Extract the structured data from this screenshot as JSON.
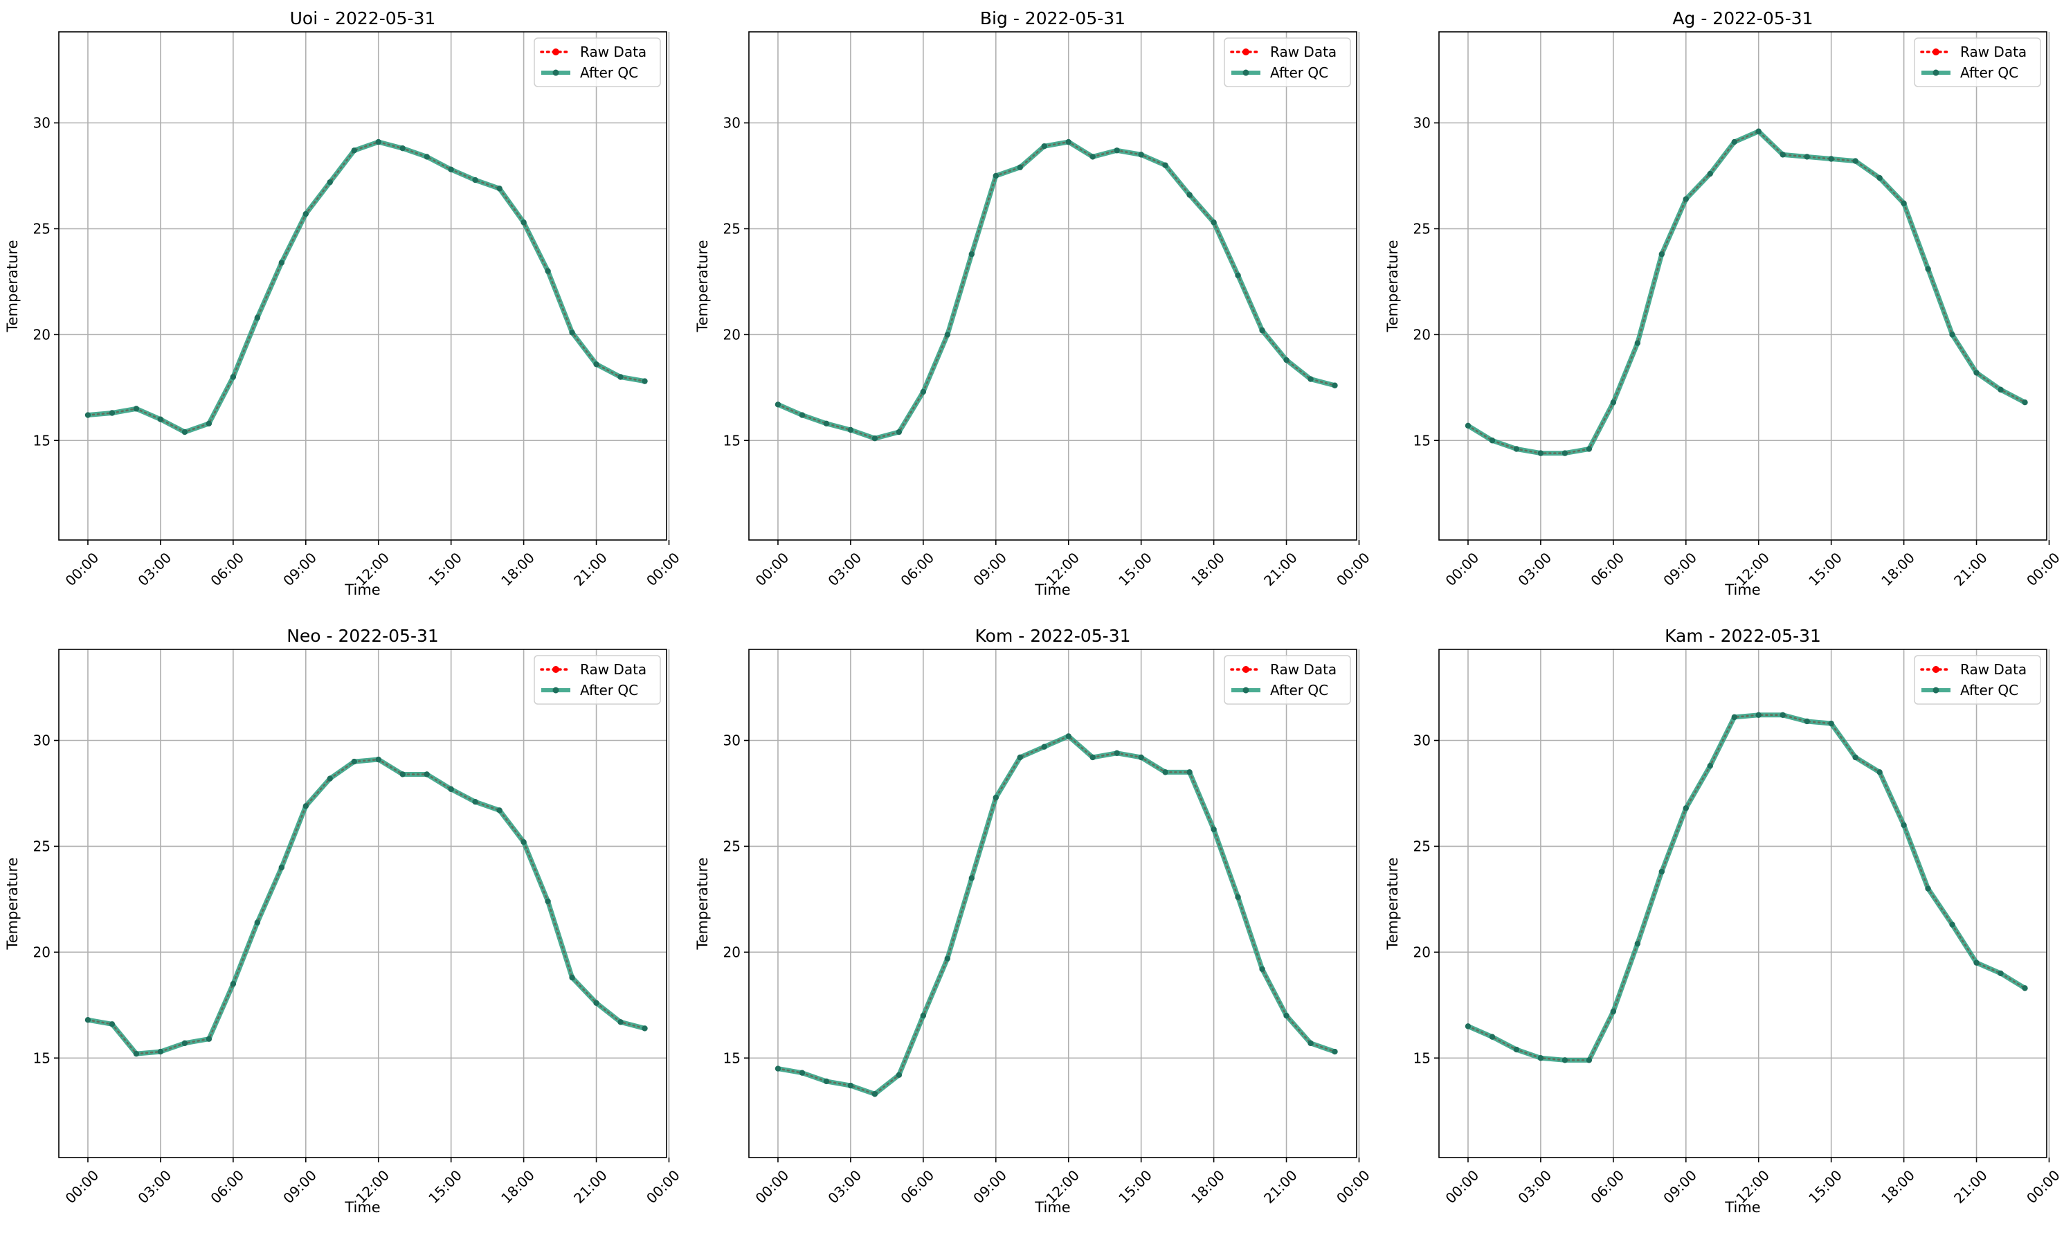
{
  "figure": {
    "legend_labels": [
      "Raw Data",
      "After QC"
    ],
    "colors": {
      "raw": "#ff0000",
      "qc": "#2a9d7f",
      "qc_marker": "#1f6f5c",
      "grid": "#b0b0b0",
      "axes": "#000000"
    }
  },
  "chart_data": [
    {
      "type": "line",
      "title": "Uoi - 2022-05-31",
      "xlabel": "Time",
      "ylabel": "Temperature",
      "ylim": [
        10.3,
        34.3
      ],
      "xlim": [
        -1.2,
        23.9
      ],
      "yticks": [
        15,
        20,
        25,
        30
      ],
      "xticks": [
        "00:00",
        "03:00",
        "06:00",
        "09:00",
        "12:00",
        "15:00",
        "18:00",
        "21:00",
        "00:00"
      ],
      "x": [
        "00:00",
        "01:00",
        "02:00",
        "03:00",
        "04:00",
        "05:00",
        "06:00",
        "07:00",
        "08:00",
        "09:00",
        "10:00",
        "11:00",
        "12:00",
        "13:00",
        "14:00",
        "15:00",
        "16:00",
        "17:00",
        "18:00",
        "19:00",
        "20:00",
        "21:00",
        "22:00",
        "23:00"
      ],
      "grid": true,
      "legend_position": "upper right",
      "series": [
        {
          "name": "Raw Data",
          "values": [
            16.2,
            16.3,
            16.5,
            16.0,
            15.4,
            15.8,
            18.0,
            20.8,
            23.4,
            25.7,
            27.2,
            28.7,
            29.1,
            28.8,
            28.4,
            27.8,
            27.3,
            26.9,
            25.3,
            23.0,
            20.1,
            18.6,
            18.0,
            17.8
          ]
        },
        {
          "name": "After QC",
          "values": [
            16.2,
            16.3,
            16.5,
            16.0,
            15.4,
            15.8,
            18.0,
            20.8,
            23.4,
            25.7,
            27.2,
            28.7,
            29.1,
            28.8,
            28.4,
            27.8,
            27.3,
            26.9,
            25.3,
            23.0,
            20.1,
            18.6,
            18.0,
            17.8
          ]
        }
      ]
    },
    {
      "type": "line",
      "title": "Big - 2022-05-31",
      "xlabel": "Time",
      "ylabel": "Temperature",
      "ylim": [
        10.3,
        34.3
      ],
      "xlim": [
        -1.2,
        23.9
      ],
      "yticks": [
        15,
        20,
        25,
        30
      ],
      "xticks": [
        "00:00",
        "03:00",
        "06:00",
        "09:00",
        "12:00",
        "15:00",
        "18:00",
        "21:00",
        "00:00"
      ],
      "x": [
        "00:00",
        "01:00",
        "02:00",
        "03:00",
        "04:00",
        "05:00",
        "06:00",
        "07:00",
        "08:00",
        "09:00",
        "10:00",
        "11:00",
        "12:00",
        "13:00",
        "14:00",
        "15:00",
        "16:00",
        "17:00",
        "18:00",
        "19:00",
        "20:00",
        "21:00",
        "22:00",
        "23:00"
      ],
      "grid": true,
      "legend_position": "upper right",
      "series": [
        {
          "name": "Raw Data",
          "values": [
            16.7,
            16.2,
            15.8,
            15.5,
            15.1,
            15.4,
            17.3,
            20.0,
            23.8,
            27.5,
            27.9,
            28.9,
            29.1,
            28.4,
            28.7,
            28.5,
            28.0,
            26.6,
            25.3,
            22.8,
            20.2,
            18.8,
            17.9,
            17.6
          ]
        },
        {
          "name": "After QC",
          "values": [
            16.7,
            16.2,
            15.8,
            15.5,
            15.1,
            15.4,
            17.3,
            20.0,
            23.8,
            27.5,
            27.9,
            28.9,
            29.1,
            28.4,
            28.7,
            28.5,
            28.0,
            26.6,
            25.3,
            22.8,
            20.2,
            18.8,
            17.9,
            17.6
          ]
        }
      ]
    },
    {
      "type": "line",
      "title": "Ag - 2022-05-31",
      "xlabel": "Time",
      "ylabel": "Temperature",
      "ylim": [
        10.3,
        34.3
      ],
      "xlim": [
        -1.2,
        23.9
      ],
      "yticks": [
        15,
        20,
        25,
        30
      ],
      "xticks": [
        "00:00",
        "03:00",
        "06:00",
        "09:00",
        "12:00",
        "15:00",
        "18:00",
        "21:00",
        "00:00"
      ],
      "x": [
        "00:00",
        "01:00",
        "02:00",
        "03:00",
        "04:00",
        "05:00",
        "06:00",
        "07:00",
        "08:00",
        "09:00",
        "10:00",
        "11:00",
        "12:00",
        "13:00",
        "14:00",
        "15:00",
        "16:00",
        "17:00",
        "18:00",
        "19:00",
        "20:00",
        "21:00",
        "22:00",
        "23:00"
      ],
      "grid": true,
      "legend_position": "upper right",
      "series": [
        {
          "name": "Raw Data",
          "values": [
            15.7,
            15.0,
            14.6,
            14.4,
            14.4,
            14.6,
            16.8,
            19.6,
            23.8,
            26.4,
            27.6,
            29.1,
            29.6,
            28.5,
            28.4,
            28.3,
            28.2,
            27.4,
            26.2,
            23.1,
            20.0,
            18.2,
            17.4,
            16.8
          ]
        },
        {
          "name": "After QC",
          "values": [
            15.7,
            15.0,
            14.6,
            14.4,
            14.4,
            14.6,
            16.8,
            19.6,
            23.8,
            26.4,
            27.6,
            29.1,
            29.6,
            28.5,
            28.4,
            28.3,
            28.2,
            27.4,
            26.2,
            23.1,
            20.0,
            18.2,
            17.4,
            16.8
          ]
        }
      ]
    },
    {
      "type": "line",
      "title": "Neo - 2022-05-31",
      "xlabel": "Time",
      "ylabel": "Temperature",
      "ylim": [
        10.3,
        34.3
      ],
      "xlim": [
        -1.2,
        23.9
      ],
      "yticks": [
        15,
        20,
        25,
        30
      ],
      "xticks": [
        "00:00",
        "03:00",
        "06:00",
        "09:00",
        "12:00",
        "15:00",
        "18:00",
        "21:00",
        "00:00"
      ],
      "x": [
        "00:00",
        "01:00",
        "02:00",
        "03:00",
        "04:00",
        "05:00",
        "06:00",
        "07:00",
        "08:00",
        "09:00",
        "10:00",
        "11:00",
        "12:00",
        "13:00",
        "14:00",
        "15:00",
        "16:00",
        "17:00",
        "18:00",
        "19:00",
        "20:00",
        "21:00",
        "22:00",
        "23:00"
      ],
      "grid": true,
      "legend_position": "upper right",
      "series": [
        {
          "name": "Raw Data",
          "values": [
            16.8,
            16.6,
            15.2,
            15.3,
            15.7,
            15.9,
            18.5,
            21.4,
            24.0,
            26.9,
            28.2,
            29.0,
            29.1,
            28.4,
            28.4,
            27.7,
            27.1,
            26.7,
            25.2,
            22.4,
            18.8,
            17.6,
            16.7,
            16.4
          ]
        },
        {
          "name": "After QC",
          "values": [
            16.8,
            16.6,
            15.2,
            15.3,
            15.7,
            15.9,
            18.5,
            21.4,
            24.0,
            26.9,
            28.2,
            29.0,
            29.1,
            28.4,
            28.4,
            27.7,
            27.1,
            26.7,
            25.2,
            22.4,
            18.8,
            17.6,
            16.7,
            16.4
          ]
        }
      ]
    },
    {
      "type": "line",
      "title": "Kom - 2022-05-31",
      "xlabel": "Time",
      "ylabel": "Temperature",
      "ylim": [
        10.3,
        34.3
      ],
      "xlim": [
        -1.2,
        23.9
      ],
      "yticks": [
        15,
        20,
        25,
        30
      ],
      "xticks": [
        "00:00",
        "03:00",
        "06:00",
        "09:00",
        "12:00",
        "15:00",
        "18:00",
        "21:00",
        "00:00"
      ],
      "x": [
        "00:00",
        "01:00",
        "02:00",
        "03:00",
        "04:00",
        "05:00",
        "06:00",
        "07:00",
        "08:00",
        "09:00",
        "10:00",
        "11:00",
        "12:00",
        "13:00",
        "14:00",
        "15:00",
        "16:00",
        "17:00",
        "18:00",
        "19:00",
        "20:00",
        "21:00",
        "22:00",
        "23:00"
      ],
      "grid": true,
      "legend_position": "upper right",
      "series": [
        {
          "name": "Raw Data",
          "values": [
            14.5,
            14.3,
            13.9,
            13.7,
            13.3,
            14.2,
            17.0,
            19.7,
            23.5,
            27.3,
            29.2,
            29.7,
            30.2,
            29.2,
            29.4,
            29.2,
            28.5,
            28.5,
            25.8,
            22.6,
            19.2,
            17.0,
            15.7,
            15.3
          ]
        },
        {
          "name": "After QC",
          "values": [
            14.5,
            14.3,
            13.9,
            13.7,
            13.3,
            14.2,
            17.0,
            19.7,
            23.5,
            27.3,
            29.2,
            29.7,
            30.2,
            29.2,
            29.4,
            29.2,
            28.5,
            28.5,
            25.8,
            22.6,
            19.2,
            17.0,
            15.7,
            15.3
          ]
        }
      ]
    },
    {
      "type": "line",
      "title": "Kam - 2022-05-31",
      "xlabel": "Time",
      "ylabel": "Temperature",
      "ylim": [
        10.3,
        34.3
      ],
      "xlim": [
        -1.2,
        23.9
      ],
      "yticks": [
        15,
        20,
        25,
        30
      ],
      "xticks": [
        "00:00",
        "03:00",
        "06:00",
        "09:00",
        "12:00",
        "15:00",
        "18:00",
        "21:00",
        "00:00"
      ],
      "x": [
        "00:00",
        "01:00",
        "02:00",
        "03:00",
        "04:00",
        "05:00",
        "06:00",
        "07:00",
        "08:00",
        "09:00",
        "10:00",
        "11:00",
        "12:00",
        "13:00",
        "14:00",
        "15:00",
        "16:00",
        "17:00",
        "18:00",
        "19:00",
        "20:00",
        "21:00",
        "22:00",
        "23:00"
      ],
      "grid": true,
      "legend_position": "upper right",
      "series": [
        {
          "name": "Raw Data",
          "values": [
            16.5,
            16.0,
            15.4,
            15.0,
            14.9,
            14.9,
            17.2,
            20.4,
            23.8,
            26.8,
            28.8,
            31.1,
            31.2,
            31.2,
            30.9,
            30.8,
            29.2,
            28.5,
            26.0,
            23.0,
            21.3,
            19.5,
            19.0,
            18.3
          ]
        },
        {
          "name": "After QC",
          "values": [
            16.5,
            16.0,
            15.4,
            15.0,
            14.9,
            14.9,
            17.2,
            20.4,
            23.8,
            26.8,
            28.8,
            31.1,
            31.2,
            31.2,
            30.9,
            30.8,
            29.2,
            28.5,
            26.0,
            23.0,
            21.3,
            19.5,
            19.0,
            18.3
          ]
        }
      ]
    }
  ]
}
